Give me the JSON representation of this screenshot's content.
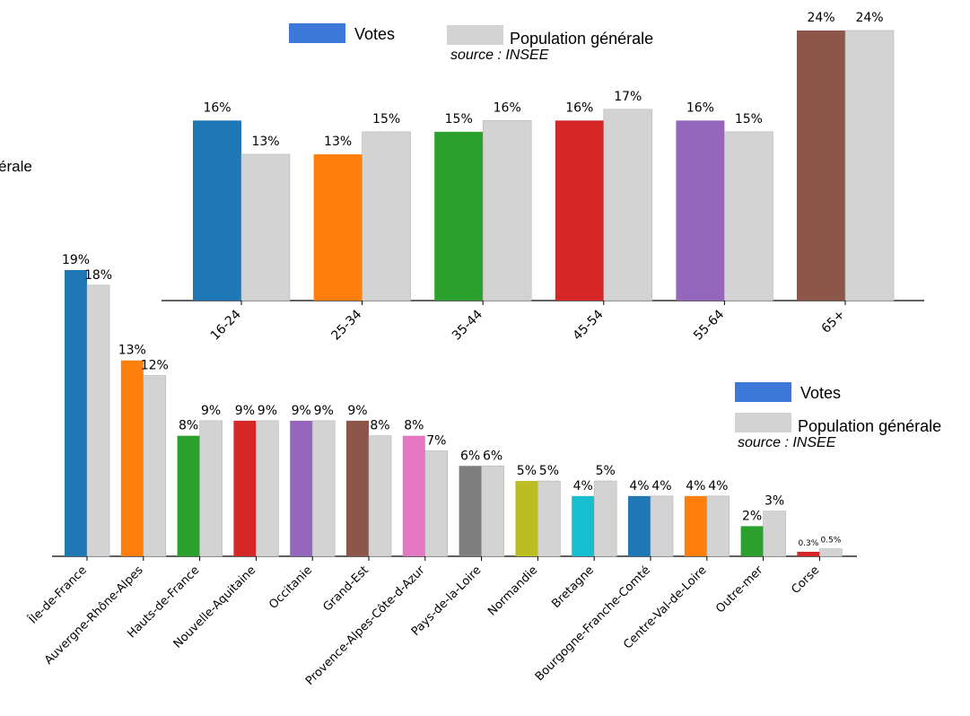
{
  "colors": {
    "population": "#d3d3d3",
    "legend_votes": "#3c78d8",
    "palette": [
      "#1f77b4",
      "#ff7f0e",
      "#2ca02c",
      "#d62728",
      "#9467bd",
      "#8c564b",
      "#e377c2",
      "#7f7f7f",
      "#bcbd22",
      "#17becf"
    ]
  },
  "clipped_text": "érale",
  "chart_data": [
    {
      "type": "bar",
      "categories": [
        "16-24",
        "25-34",
        "35-44",
        "45-54",
        "55-64",
        "65+"
      ],
      "series": [
        {
          "name": "Votes",
          "values": [
            16,
            13,
            15,
            16,
            16,
            24
          ],
          "labels": [
            "16%",
            "13%",
            "15%",
            "16%",
            "16%",
            "24%"
          ]
        },
        {
          "name": "Population générale",
          "values": [
            13,
            15,
            16,
            17,
            15,
            24
          ],
          "labels": [
            "13%",
            "15%",
            "16%",
            "17%",
            "15%",
            "24%"
          ]
        }
      ],
      "legend": {
        "votes": "Votes",
        "population": "Population générale",
        "source": "source : INSEE",
        "placement": "top"
      },
      "ylim": [
        0,
        24
      ],
      "grid": false
    },
    {
      "type": "bar",
      "categories": [
        "Île-de-France",
        "Auvergne-Rhône-Alpes",
        "Hauts-de-France",
        "Nouvelle-Aquitaine",
        "Occitanie",
        "Grand-Est",
        "Provence-Alpes-Côte-d-Azur",
        "Pays-de-la-Loire",
        "Normandie",
        "Bretagne",
        "Bourgogne-Franche-Comté",
        "Centre-Val-de-Loire",
        "Outre-mer",
        "Corse"
      ],
      "series": [
        {
          "name": "Votes",
          "values": [
            19,
            13,
            8,
            9,
            9,
            9,
            8,
            6,
            5,
            4,
            4,
            4,
            2,
            0.3
          ],
          "labels": [
            "19%",
            "13%",
            "8%",
            "9%",
            "9%",
            "9%",
            "8%",
            "6%",
            "5%",
            "4%",
            "4%",
            "4%",
            "2%",
            "0.3%"
          ]
        },
        {
          "name": "Population générale",
          "values": [
            18,
            12,
            9,
            9,
            9,
            8,
            7,
            6,
            5,
            5,
            4,
            4,
            3,
            0.5
          ],
          "labels": [
            "18%",
            "12%",
            "9%",
            "9%",
            "9%",
            "8%",
            "7%",
            "6%",
            "5%",
            "5%",
            "4%",
            "4%",
            "3%",
            "0.5%"
          ]
        }
      ],
      "legend": {
        "votes": "Votes",
        "population": "Population générale",
        "source": "source : INSEE",
        "placement": "right"
      },
      "ylim": [
        0,
        19
      ],
      "grid": false
    }
  ]
}
